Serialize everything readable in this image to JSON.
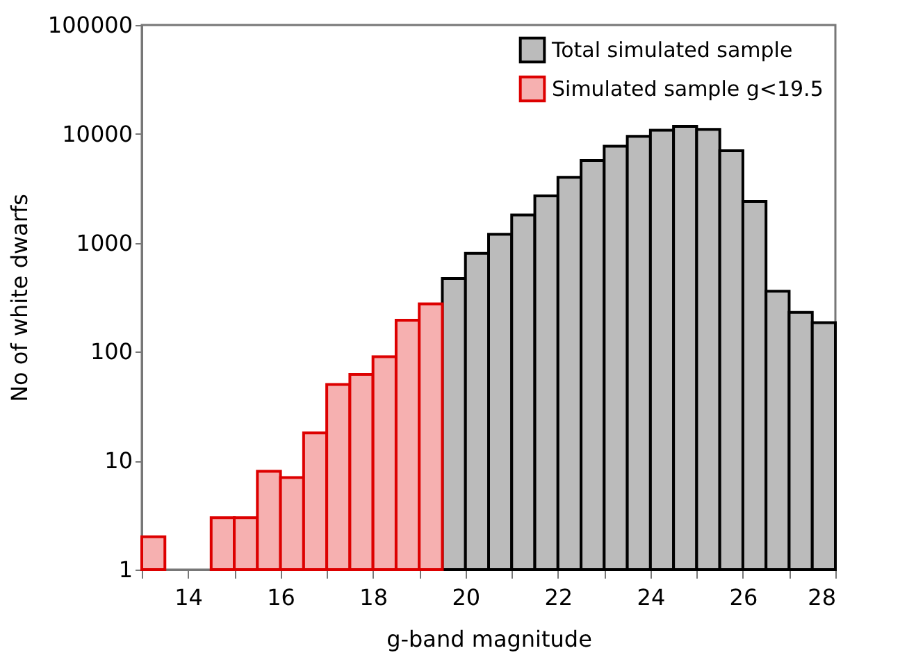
{
  "chart_data": {
    "type": "histogram",
    "xlabel": "g-band magnitude",
    "ylabel": "No of white dwarfs",
    "bins": [
      13,
      13.5,
      14,
      14.5,
      15,
      15.5,
      16,
      16.5,
      17,
      17.5,
      18,
      18.5,
      19,
      19.5,
      20,
      20.5,
      21,
      21.5,
      22,
      22.5,
      23,
      23.5,
      24,
      24.5,
      25,
      25.5,
      26,
      26.5,
      27,
      27.5,
      28
    ],
    "series": [
      {
        "name": "Total simulated sample",
        "color": "#000000",
        "values": [
          null,
          null,
          null,
          null,
          null,
          null,
          null,
          null,
          null,
          null,
          null,
          null,
          null,
          470,
          800,
          1200,
          1800,
          2700,
          4000,
          5700,
          7700,
          9500,
          10800,
          11700,
          11000,
          7000,
          2400,
          360,
          230,
          185
        ]
      },
      {
        "name": "Simulated sample g<19.5",
        "color": "#dd0000",
        "values": [
          2,
          null,
          null,
          3,
          3,
          8,
          7,
          18,
          50,
          62,
          90,
          195,
          275,
          null,
          null,
          null,
          null,
          null,
          null,
          null,
          null,
          null,
          null,
          null,
          null,
          null,
          null,
          null,
          null,
          null
        ]
      }
    ],
    "xlim": [
      13,
      28
    ],
    "xticks": [
      {
        "value": 13,
        "label": null
      },
      14,
      {
        "value": 15,
        "label": null
      },
      16,
      {
        "value": 17,
        "label": null
      },
      18,
      {
        "value": 19,
        "label": null
      },
      20,
      {
        "value": 21,
        "label": null
      },
      22,
      {
        "value": 23,
        "label": null
      },
      24,
      {
        "value": 25,
        "label": null
      },
      26,
      {
        "value": 27,
        "label": null
      },
      28
    ],
    "ylim": [
      1,
      100000
    ],
    "yticks": [
      1,
      10,
      100,
      1000,
      10000,
      100000
    ],
    "log": "y",
    "grid": false,
    "legend": "top right"
  }
}
